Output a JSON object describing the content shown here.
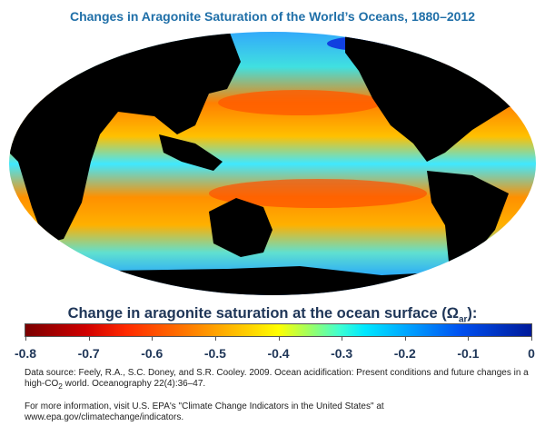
{
  "title": "Changes in Aragonite Saturation of the World’s Oceans, 1880–2012",
  "chart_data": {
    "type": "heatmap",
    "title": "Changes in Aragonite Saturation of the World’s Oceans, 1880–2012",
    "colorbar": {
      "label_main": "Change in aragonite saturation at the ocean surface (Ω",
      "label_sub": "ar",
      "label_end": "):",
      "range": [
        -0.8,
        0
      ],
      "ticks": [
        "-0.8",
        "-0.7",
        "-0.6",
        "-0.5",
        "-0.4",
        "-0.3",
        "-0.2",
        "-0.1",
        "0"
      ],
      "tick_values": [
        -0.8,
        -0.7,
        -0.6,
        -0.5,
        -0.4,
        -0.3,
        -0.2,
        -0.1,
        0
      ],
      "colors": [
        "#7a0000",
        "#ff2a00",
        "#ffff00",
        "#00e8ff",
        "#001a9a"
      ]
    }
  },
  "source": {
    "part1": "Data source: Feely, R.A., S.C. Doney, and S.R. Cooley. 2009. Ocean acidification: Present conditions and future changes in a high-CO",
    "sub": "2",
    "part2": " world. Oceanography 22(4):36–47."
  },
  "more_info": {
    "line1": "For more information, visit U.S. EPA's \"Climate Change Indicators in the United States\" at",
    "line2": "www.epa.gov/climatechange/indicators."
  }
}
